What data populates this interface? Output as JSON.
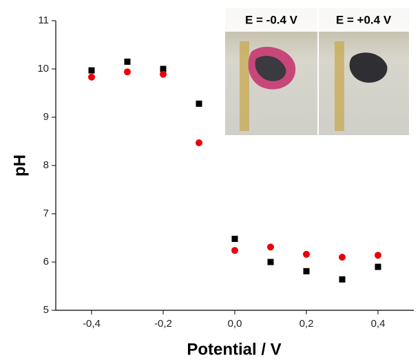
{
  "chart_data": {
    "type": "scatter",
    "x_label": "Potential / V",
    "y_label": "pH",
    "series": [
      {
        "color": "#000000",
        "marker": "square",
        "x": [
          -0.4,
          -0.3,
          -0.2,
          -0.1,
          0.0,
          0.1,
          0.2,
          0.3,
          0.4
        ],
        "values": [
          9.97,
          10.15,
          10.0,
          9.28,
          6.48,
          6.0,
          5.81,
          5.64,
          5.9
        ]
      },
      {
        "color": "#e8000b",
        "marker": "circle",
        "x": [
          -0.4,
          -0.3,
          -0.2,
          -0.1,
          0.0,
          0.1,
          0.2,
          0.3,
          0.4
        ],
        "values": [
          9.83,
          9.94,
          9.89,
          8.47,
          6.24,
          6.31,
          6.16,
          6.1,
          6.14
        ]
      }
    ],
    "xlim": [
      -0.5,
      0.5
    ],
    "xticks": [
      {
        "value": -0.4,
        "label": "-0,4"
      },
      {
        "value": -0.2,
        "label": "-0,2"
      },
      {
        "value": 0.0,
        "label": "0,0"
      },
      {
        "value": 0.2,
        "label": "0,2"
      },
      {
        "value": 0.4,
        "label": "0,4"
      }
    ],
    "ylim": [
      5,
      11
    ],
    "yticks": [
      5,
      6,
      7,
      8,
      9,
      10,
      11
    ],
    "annotations": [
      "E = -0.4 V",
      "E = +0.4 V"
    ]
  }
}
